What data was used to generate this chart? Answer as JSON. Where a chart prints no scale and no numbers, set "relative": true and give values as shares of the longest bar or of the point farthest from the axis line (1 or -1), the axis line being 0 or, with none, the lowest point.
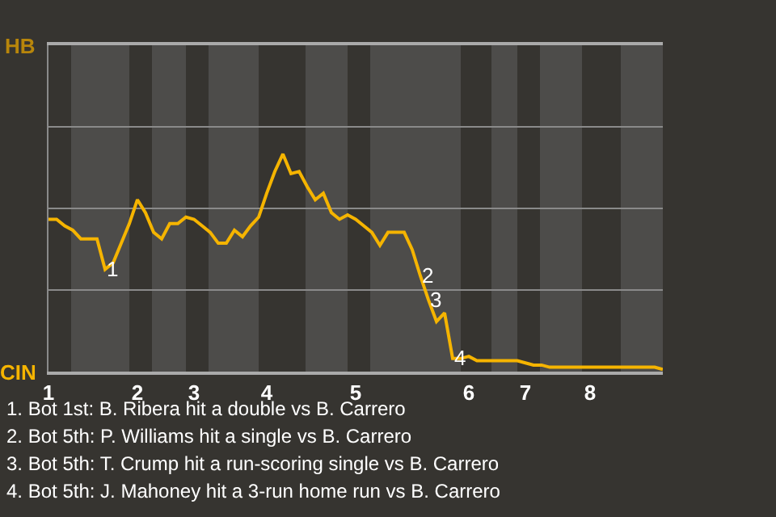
{
  "chart_data": {
    "type": "line",
    "relative": true,
    "categories": [
      "1",
      null,
      null,
      null,
      null,
      null,
      null,
      null,
      null,
      null,
      null,
      "2",
      null,
      null,
      null,
      null,
      null,
      null,
      "3",
      null,
      null,
      null,
      null,
      null,
      null,
      null,
      null,
      "4",
      null,
      null,
      null,
      null,
      null,
      null,
      null,
      null,
      null,
      null,
      "5",
      null,
      null,
      null,
      null,
      null,
      null,
      null,
      null,
      null,
      null,
      null,
      null,
      null,
      "6",
      null,
      null,
      null,
      null,
      null,
      null,
      "7",
      null,
      null,
      null,
      null,
      null,
      null,
      null,
      "8",
      null,
      null,
      null,
      null,
      null,
      null,
      null,
      null,
      null
    ],
    "series": [
      {
        "color": "#f5b400",
        "values": [
          0.7,
          0.7,
          0.67,
          0.65,
          0.61,
          0.61,
          0.61,
          0.47,
          0.5,
          0.59,
          0.68,
          0.79,
          0.73,
          0.64,
          0.61,
          0.68,
          0.68,
          0.71,
          0.7,
          0.67,
          0.64,
          0.59,
          0.59,
          0.65,
          0.62,
          0.67,
          0.71,
          0.82,
          0.92,
          1,
          0.91,
          0.92,
          0.85,
          0.79,
          0.82,
          0.73,
          0.7,
          0.72,
          0.7,
          0.67,
          0.64,
          0.58,
          0.64,
          0.64,
          0.64,
          0.56,
          0.44,
          0.33,
          0.23,
          0.27,
          0.06,
          0.06,
          0.07,
          0.05,
          0.05,
          0.05,
          0.05,
          0.05,
          0.05,
          0.04,
          0.03,
          0.03,
          0.02,
          0.02,
          0.02,
          0.02,
          0.02,
          0.02,
          0.02,
          0.02,
          0.02,
          0.02,
          0.02,
          0.02,
          0.02,
          0.02,
          0.01
        ]
      }
    ],
    "annotations": [
      "HB",
      "CIN",
      {
        "text": "1",
        "y": 0.47
      },
      {
        "text": "2",
        "y": 0.44
      },
      {
        "text": "3",
        "y": 0.33
      },
      {
        "text": "4",
        "y": 0.06
      },
      "1. Bot 1st: B. Ribera hit a double vs B. Carrero",
      "2. Bot 5th: P. Williams hit a single vs B. Carrero",
      "3. Bot 5th: T. Crump hit a run-scoring single vs B. Carrero",
      "4. Bot 5th: J. Mahoney hit a 3-run home run vs B. Carrero"
    ],
    "ref_lines": [
      {
        "axis": "y",
        "value": 0.375,
        "color": "#8a8a8a"
      },
      {
        "axis": "y",
        "value": 0.75,
        "color": "#8a8a8a"
      },
      {
        "axis": "y",
        "value": 1.125,
        "color": "#8a8a8a"
      }
    ],
    "marker": "none",
    "line_style": "solid"
  }
}
